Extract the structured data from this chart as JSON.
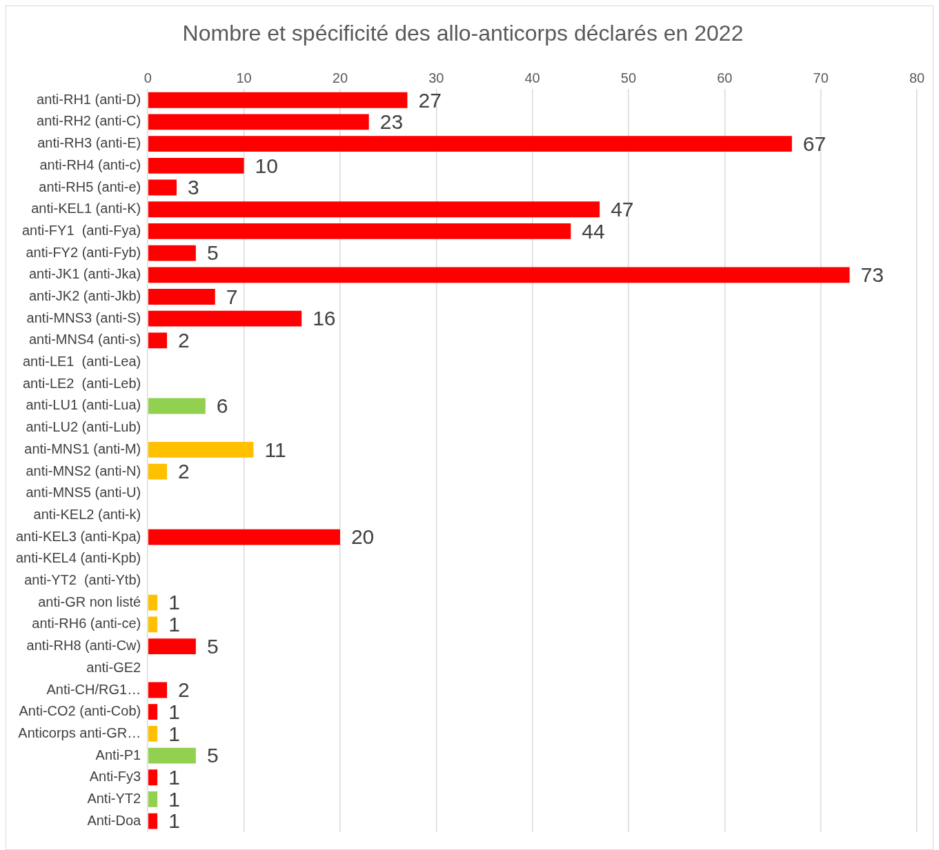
{
  "chart_data": {
    "type": "bar",
    "orientation": "horizontal",
    "title": "Nombre et spécificité des allo-anticorps déclarés en 2022",
    "categories": [
      "anti-RH1 (anti-D)",
      "anti-RH2 (anti-C)",
      "anti-RH3 (anti-E)",
      "anti-RH4 (anti-c)",
      "anti-RH5 (anti-e)",
      "anti-KEL1 (anti-K)",
      "anti-FY1  (anti-Fya)",
      "anti-FY2 (anti-Fyb)",
      "anti-JK1 (anti-Jka)",
      "anti-JK2 (anti-Jkb)",
      "anti-MNS3 (anti-S)",
      "anti-MNS4 (anti-s)",
      "anti-LE1  (anti-Lea)",
      "anti-LE2  (anti-Leb)",
      "anti-LU1 (anti-Lua)",
      "anti-LU2 (anti-Lub)",
      "anti-MNS1 (anti-M)",
      "anti-MNS2 (anti-N)",
      "anti-MNS5 (anti-U)",
      "anti-KEL2 (anti-k)",
      "anti-KEL3 (anti-Kpa)",
      "anti-KEL4 (anti-Kpb)",
      "anti-YT2  (anti-Ytb)",
      "anti-GR non listé",
      "anti-RH6 (anti-ce)",
      "anti-RH8 (anti-Cw)",
      "anti-GE2",
      "Anti-CH/RG1…",
      "Anti-CO2 (anti-Cob)",
      "Anticorps anti-GR…",
      "Anti-P1",
      "Anti-Fy3",
      "Anti-YT2",
      "Anti-Doa"
    ],
    "values": [
      27,
      23,
      67,
      10,
      3,
      47,
      44,
      5,
      73,
      7,
      16,
      2,
      null,
      null,
      6,
      null,
      11,
      2,
      null,
      null,
      20,
      null,
      null,
      1,
      1,
      5,
      null,
      2,
      1,
      1,
      5,
      1,
      1,
      1
    ],
    "colors": [
      "#ff0000",
      "#ff0000",
      "#ff0000",
      "#ff0000",
      "#ff0000",
      "#ff0000",
      "#ff0000",
      "#ff0000",
      "#ff0000",
      "#ff0000",
      "#ff0000",
      "#ff0000",
      "#ff0000",
      "#ff0000",
      "#92d050",
      "#92d050",
      "#ffc000",
      "#ffc000",
      "#ffc000",
      "#ff0000",
      "#ff0000",
      "#ff0000",
      "#ff0000",
      "#ffc000",
      "#ffc000",
      "#ff0000",
      "#ff0000",
      "#ff0000",
      "#ff0000",
      "#ffc000",
      "#92d050",
      "#ff0000",
      "#92d050",
      "#ff0000"
    ],
    "xlim": [
      0,
      80
    ],
    "xticks": [
      0,
      10,
      20,
      30,
      40,
      50,
      60,
      70,
      80
    ],
    "grid": "x",
    "data_labels": true,
    "legend": false
  }
}
